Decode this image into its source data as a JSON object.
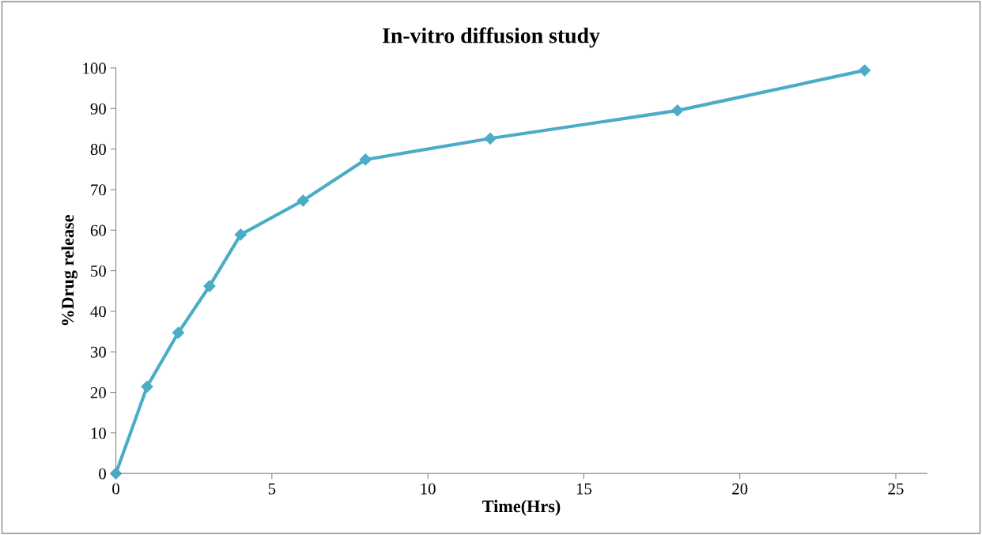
{
  "chart_data": {
    "type": "line",
    "title": "In-vitro diffusion study",
    "xlabel": "Time(Hrs)",
    "ylabel": "%Drug release",
    "x": [
      0,
      1,
      2,
      3,
      4,
      6,
      8,
      12,
      18,
      24
    ],
    "series": [
      {
        "color": "#4bacc6",
        "values": [
          0,
          21.4,
          34.7,
          46.2,
          58.9,
          67.3,
          77.4,
          82.6,
          89.5,
          99.4
        ]
      }
    ],
    "xlim": [
      0,
      26
    ],
    "xticks": [
      0,
      5,
      10,
      15,
      20,
      25
    ],
    "ylim": [
      0,
      100
    ],
    "yticks": [
      0,
      10,
      20,
      30,
      40,
      50,
      60,
      70,
      80,
      90,
      100
    ],
    "grid": false,
    "legend": false,
    "marker": "diamond",
    "line_style": "solid"
  }
}
